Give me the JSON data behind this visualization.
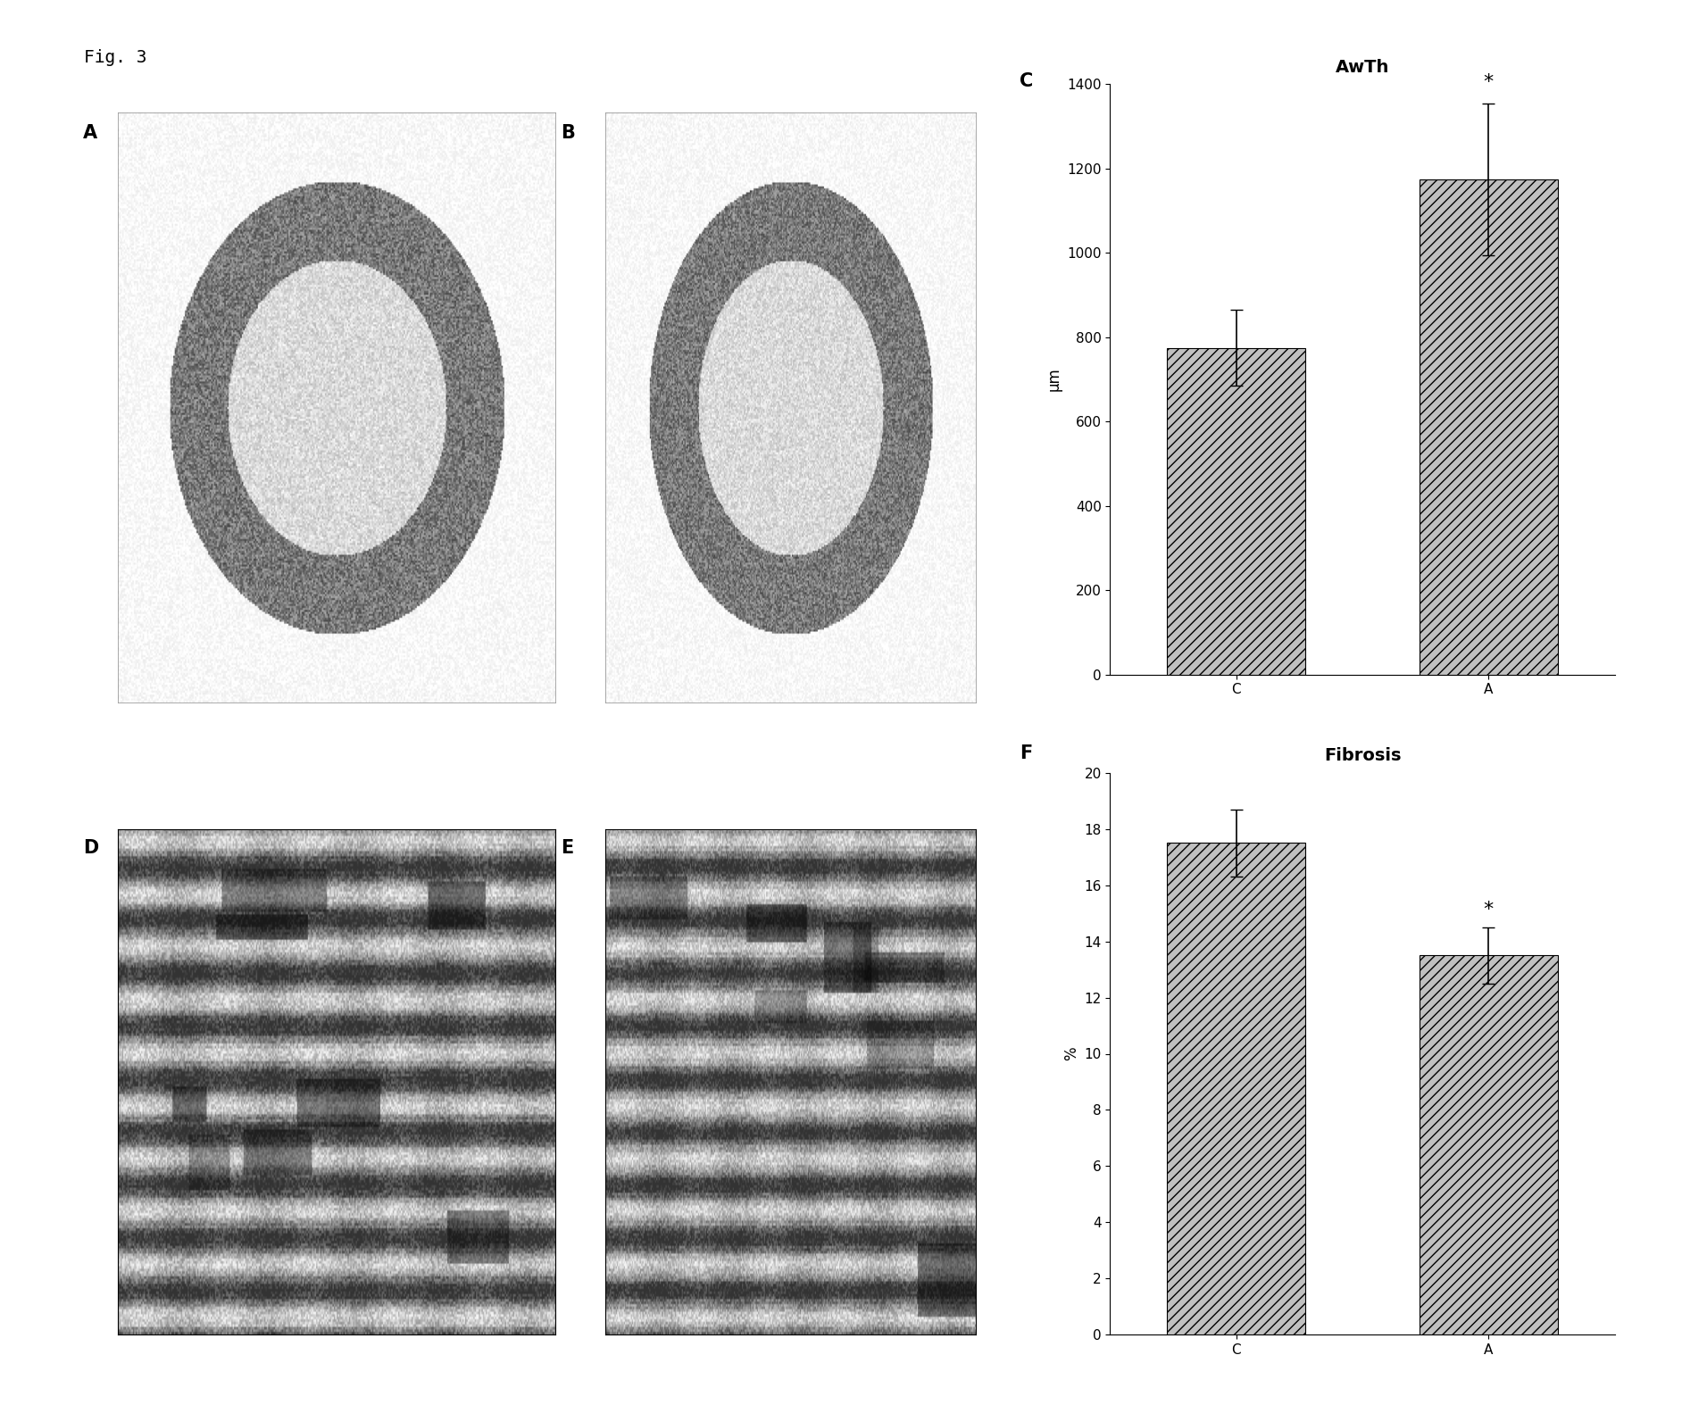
{
  "fig_label": "Fig. 3",
  "chart_C": {
    "label": "C",
    "title": "AwTh",
    "categories": [
      "C",
      "A"
    ],
    "values": [
      775,
      1175
    ],
    "errors": [
      90,
      180
    ],
    "ylabel": "μm",
    "ylim": [
      0,
      1400
    ],
    "yticks": [
      0,
      200,
      400,
      600,
      800,
      1000,
      1200,
      1400
    ],
    "bar_color": "#c0c0c0",
    "bar_hatch": "///",
    "asterisk_bar": 1
  },
  "chart_F": {
    "label": "F",
    "title": "Fibrosis",
    "categories": [
      "C",
      "A"
    ],
    "values": [
      17.5,
      13.5
    ],
    "errors": [
      1.2,
      1.0
    ],
    "ylabel": "%",
    "ylim": [
      0,
      20
    ],
    "yticks": [
      0,
      2,
      4,
      6,
      8,
      10,
      12,
      14,
      16,
      18,
      20
    ],
    "bar_color": "#c0c0c0",
    "bar_hatch": "///",
    "asterisk_bar": 1
  },
  "background_color": "#ffffff",
  "image_A_label": "A",
  "image_B_label": "B",
  "image_D_label": "D",
  "image_E_label": "E",
  "label_fontsize": 15,
  "title_fontsize": 14,
  "tick_fontsize": 11,
  "axis_label_fontsize": 12
}
